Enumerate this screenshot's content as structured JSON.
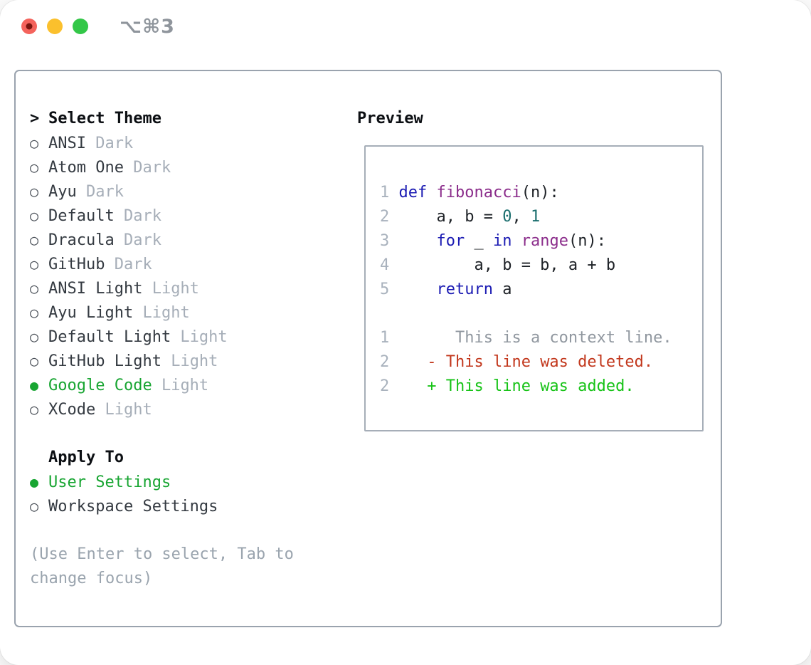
{
  "window": {
    "shortcut": "⌥⌘3"
  },
  "icons": {
    "cursor": ">",
    "radio_on": "●",
    "radio_off": "○"
  },
  "colors": {
    "traffic_red": "#f4635c",
    "traffic_red_dot": "#7a150f",
    "traffic_yellow": "#fbc02d",
    "traffic_green": "#33c748",
    "shortcut_gray": "#8f959c",
    "panel_border": "#9aa3ae",
    "box_border": "#a6aeb8",
    "heading": "#0c0f13",
    "item_text": "#343a41",
    "variant_muted": "#a6aeb8",
    "radio_outline": "#474d55",
    "selected_green": "#18a532",
    "hint_gray": "#9aa4ae",
    "code": {
      "keyword": "#1b1bb3",
      "function": "#8b2d8b",
      "number": "#1a6e6e",
      "plain": "#1d2126",
      "line_number": "#a9b2bd",
      "context": "#90979f",
      "deleted": "#c2371c",
      "added": "#17c317"
    }
  },
  "theme_picker": {
    "title": "Select Theme",
    "items": [
      {
        "name": "ANSI",
        "variant": "Dark",
        "selected": false
      },
      {
        "name": "Atom One",
        "variant": "Dark",
        "selected": false
      },
      {
        "name": "Ayu",
        "variant": "Dark",
        "selected": false
      },
      {
        "name": "Default",
        "variant": "Dark",
        "selected": false
      },
      {
        "name": "Dracula",
        "variant": "Dark",
        "selected": false
      },
      {
        "name": "GitHub",
        "variant": "Dark",
        "selected": false
      },
      {
        "name": "ANSI Light",
        "variant": "Light",
        "selected": false
      },
      {
        "name": "Ayu Light",
        "variant": "Light",
        "selected": false
      },
      {
        "name": "Default Light",
        "variant": "Light",
        "selected": false
      },
      {
        "name": "GitHub Light",
        "variant": "Light",
        "selected": false
      },
      {
        "name": "Google Code",
        "variant": "Light",
        "selected": true
      },
      {
        "name": "XCode",
        "variant": "Light",
        "selected": false
      }
    ],
    "apply_to": {
      "title": "Apply To",
      "options": [
        {
          "label": "User Settings",
          "selected": true
        },
        {
          "label": "Workspace Settings",
          "selected": false
        }
      ]
    },
    "hint": "(Use Enter to select, Tab to change focus)"
  },
  "preview": {
    "title": "Preview",
    "lines": [
      {
        "kind": "code",
        "tokens": [
          [
            "1 ",
            "line_number"
          ],
          [
            "def ",
            "keyword"
          ],
          [
            "fibonacci",
            "function"
          ],
          [
            "(n):",
            "plain"
          ]
        ]
      },
      {
        "kind": "code",
        "tokens": [
          [
            "2 ",
            "line_number"
          ],
          [
            "    ",
            "plain"
          ],
          [
            "a",
            "plain"
          ],
          [
            ", ",
            "plain"
          ],
          [
            "b",
            "plain"
          ],
          [
            " = ",
            "plain"
          ],
          [
            "0",
            "number"
          ],
          [
            ", ",
            "plain"
          ],
          [
            "1",
            "number"
          ]
        ]
      },
      {
        "kind": "code",
        "tokens": [
          [
            "3 ",
            "line_number"
          ],
          [
            "    ",
            "plain"
          ],
          [
            "for",
            "keyword"
          ],
          [
            " _ ",
            "plain"
          ],
          [
            "in",
            "keyword"
          ],
          [
            " ",
            "plain"
          ],
          [
            "range",
            "function"
          ],
          [
            "(n):",
            "plain"
          ]
        ]
      },
      {
        "kind": "code",
        "tokens": [
          [
            "4 ",
            "line_number"
          ],
          [
            "        ",
            "plain"
          ],
          [
            "a, b = b, a + b",
            "plain"
          ]
        ]
      },
      {
        "kind": "code",
        "tokens": [
          [
            "5 ",
            "line_number"
          ],
          [
            "    ",
            "plain"
          ],
          [
            "return",
            "keyword"
          ],
          [
            " a",
            "plain"
          ]
        ]
      },
      {
        "kind": "blank",
        "tokens": []
      },
      {
        "kind": "diff-context",
        "tokens": [
          [
            "1 ",
            "line_number"
          ],
          [
            "      ",
            "plain"
          ],
          [
            "This is a context line.",
            "context"
          ]
        ]
      },
      {
        "kind": "diff-deleted",
        "tokens": [
          [
            "2 ",
            "line_number"
          ],
          [
            "   ",
            "plain"
          ],
          [
            "- This line was deleted.",
            "deleted"
          ]
        ]
      },
      {
        "kind": "diff-added",
        "tokens": [
          [
            "2 ",
            "line_number"
          ],
          [
            "   ",
            "plain"
          ],
          [
            "+ This line was added.",
            "added"
          ]
        ]
      }
    ]
  }
}
